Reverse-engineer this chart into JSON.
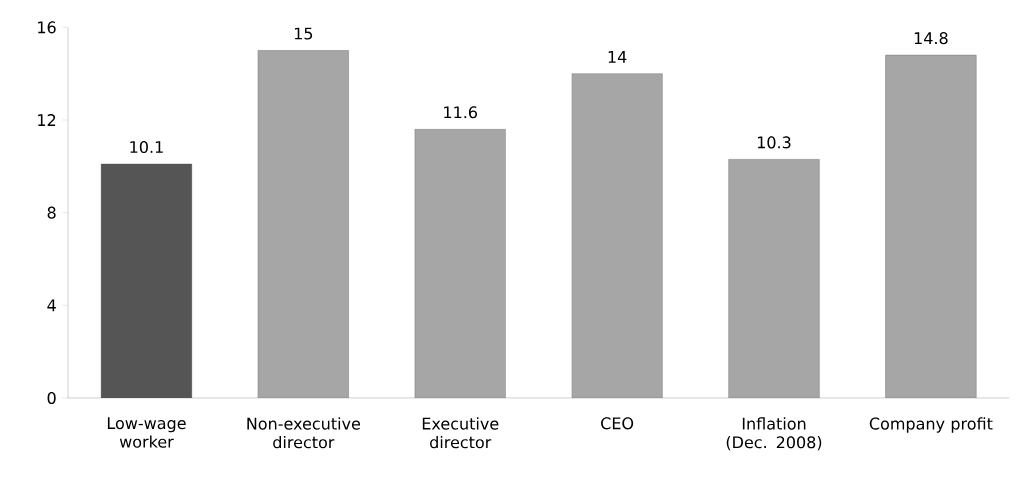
{
  "chart_data": {
    "type": "bar",
    "categories": [
      "Low-wage worker",
      "Non-executive director",
      "Executive director",
      "CEO",
      "Inflation (Dec. 2008)",
      "Company profit"
    ],
    "values": [
      10.1,
      15,
      11.6,
      14,
      10.3,
      14.8
    ],
    "colors": [
      "#555555",
      "#a6a6a6",
      "#a6a6a6",
      "#a6a6a6",
      "#a6a6a6",
      "#a6a6a6"
    ],
    "ylim": [
      0,
      16
    ],
    "yticks": [
      0,
      4,
      8,
      12,
      16
    ],
    "data_labels": true
  }
}
